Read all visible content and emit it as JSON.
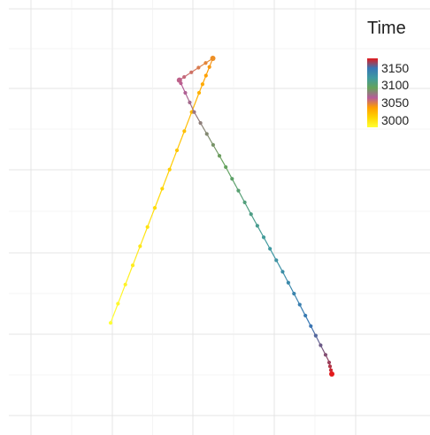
{
  "chart_data": {
    "type": "scatter",
    "title": "",
    "xlabel": "",
    "ylabel": "",
    "grid": true,
    "legend": {
      "title": "Time",
      "position": "top-right",
      "type": "colorbar",
      "ticks": [
        3150,
        3100,
        3050,
        3000
      ],
      "range": [
        3000,
        3150
      ],
      "colors": [
        "#ffff33",
        "#ffd500",
        "#ff9f00",
        "#b65b9a",
        "#66a35a",
        "#3f9aa0",
        "#3776b5",
        "#e31a1c"
      ]
    },
    "time_start": 3000,
    "time_end": 3150,
    "points": [
      {
        "t": 3000,
        "x": -1.0,
        "y": -1.0
      },
      {
        "t": 3012,
        "x": -0.7,
        "y": -0.4
      },
      {
        "t": 3024,
        "x": -0.4,
        "y": 0.2
      },
      {
        "t": 3036,
        "x": -0.1,
        "y": 0.8
      },
      {
        "t": 3048,
        "x": 0.04,
        "y": 1.07
      },
      {
        "t": 3062,
        "x": -0.3,
        "y": 0.9
      },
      {
        "t": 3072,
        "x": -0.15,
        "y": 0.65
      },
      {
        "t": 3086,
        "x": 0.15,
        "y": 0.25
      },
      {
        "t": 3100,
        "x": 0.45,
        "y": -0.18
      },
      {
        "t": 3114,
        "x": 0.75,
        "y": -0.6
      },
      {
        "t": 3128,
        "x": 1.02,
        "y": -1.0
      },
      {
        "t": 3140,
        "x": 1.22,
        "y": -1.3
      },
      {
        "t": 3150,
        "x": 1.25,
        "y": -1.4
      }
    ]
  }
}
